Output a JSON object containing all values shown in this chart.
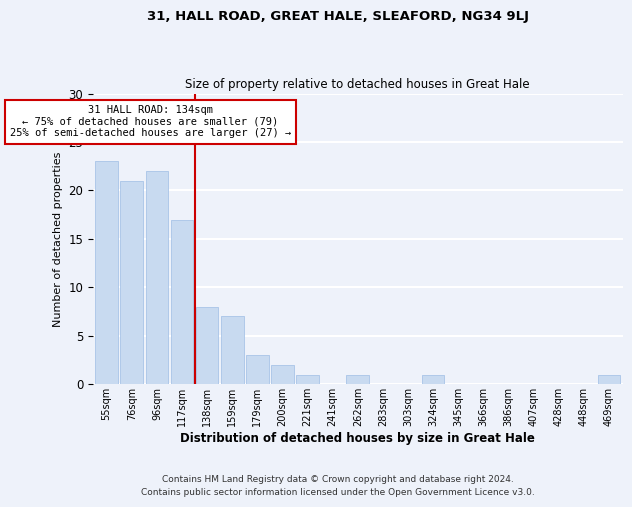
{
  "title1": "31, HALL ROAD, GREAT HALE, SLEAFORD, NG34 9LJ",
  "title2": "Size of property relative to detached houses in Great Hale",
  "xlabel": "Distribution of detached houses by size in Great Hale",
  "ylabel": "Number of detached properties",
  "bar_labels": [
    "55sqm",
    "76sqm",
    "96sqm",
    "117sqm",
    "138sqm",
    "159sqm",
    "179sqm",
    "200sqm",
    "221sqm",
    "241sqm",
    "262sqm",
    "283sqm",
    "303sqm",
    "324sqm",
    "345sqm",
    "366sqm",
    "386sqm",
    "407sqm",
    "428sqm",
    "448sqm",
    "469sqm"
  ],
  "bar_values": [
    23,
    21,
    22,
    17,
    8,
    7,
    3,
    2,
    1,
    0,
    1,
    0,
    0,
    1,
    0,
    0,
    0,
    0,
    0,
    0,
    1
  ],
  "bar_color": "#c8daf0",
  "bar_edge_color": "#a8c4e8",
  "annotation_line1": "31 HALL ROAD: 134sqm",
  "annotation_line2": "← 75% of detached houses are smaller (79)",
  "annotation_line3": "25% of semi-detached houses are larger (27) →",
  "annotation_box_color": "#ffffff",
  "annotation_box_edge": "#cc0000",
  "vline_color": "#cc0000",
  "ylim": [
    0,
    30
  ],
  "yticks": [
    0,
    5,
    10,
    15,
    20,
    25,
    30
  ],
  "footnote1": "Contains HM Land Registry data © Crown copyright and database right 2024.",
  "footnote2": "Contains public sector information licensed under the Open Government Licence v3.0.",
  "background_color": "#eef2fa",
  "grid_color": "#ffffff"
}
